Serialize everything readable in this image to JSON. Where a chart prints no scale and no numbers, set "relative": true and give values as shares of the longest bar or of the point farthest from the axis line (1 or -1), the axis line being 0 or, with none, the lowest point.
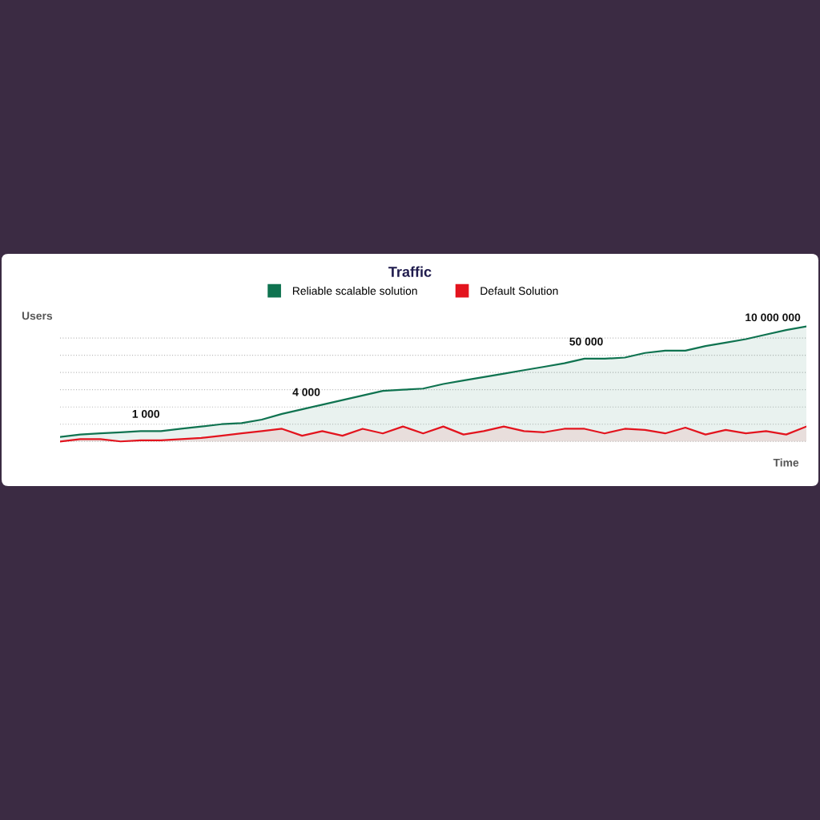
{
  "chart_data": {
    "type": "area",
    "title": "Traffic",
    "xlabel": "Time",
    "ylabel": "Users",
    "relative": true,
    "grid": "y",
    "legend": "top",
    "marker": "none",
    "line_style": "solid",
    "categories": [
      null,
      null,
      null,
      null,
      null,
      null,
      null,
      null,
      null,
      null,
      null,
      null,
      null,
      null,
      null,
      null,
      null,
      null,
      null,
      null,
      null,
      null,
      null,
      null,
      null,
      null,
      null,
      null,
      null,
      null,
      null,
      null,
      null,
      null,
      null,
      null,
      null,
      null
    ],
    "series": [
      {
        "name": "Reliable scalable solution",
        "color": "#0f7350",
        "values": [
          0.04,
          0.06,
          0.07,
          0.08,
          0.09,
          0.09,
          0.11,
          0.13,
          0.15,
          0.16,
          0.19,
          0.24,
          0.28,
          0.32,
          0.36,
          0.4,
          0.44,
          0.45,
          0.46,
          0.5,
          0.53,
          0.56,
          0.59,
          0.62,
          0.65,
          0.68,
          0.72,
          0.72,
          0.73,
          0.77,
          0.79,
          0.79,
          0.83,
          0.86,
          0.89,
          0.93,
          0.97,
          1
        ]
      },
      {
        "name": "Default Solution",
        "color": "#e3141e",
        "values": [
          0,
          0.02,
          0.02,
          0,
          0.01,
          0.01,
          0.02,
          0.03,
          0.05,
          0.07,
          0.09,
          0.11,
          0.05,
          0.09,
          0.05,
          0.11,
          0.07,
          0.13,
          0.07,
          0.13,
          0.06,
          0.09,
          0.13,
          0.09,
          0.08,
          0.11,
          0.11,
          0.07,
          0.11,
          0.1,
          0.07,
          0.12,
          0.06,
          0.1,
          0.07,
          0.09,
          0.06,
          0.13
        ]
      }
    ],
    "annotations": [
      "1 000",
      "4 000",
      "50 000",
      "10 000 000"
    ]
  }
}
